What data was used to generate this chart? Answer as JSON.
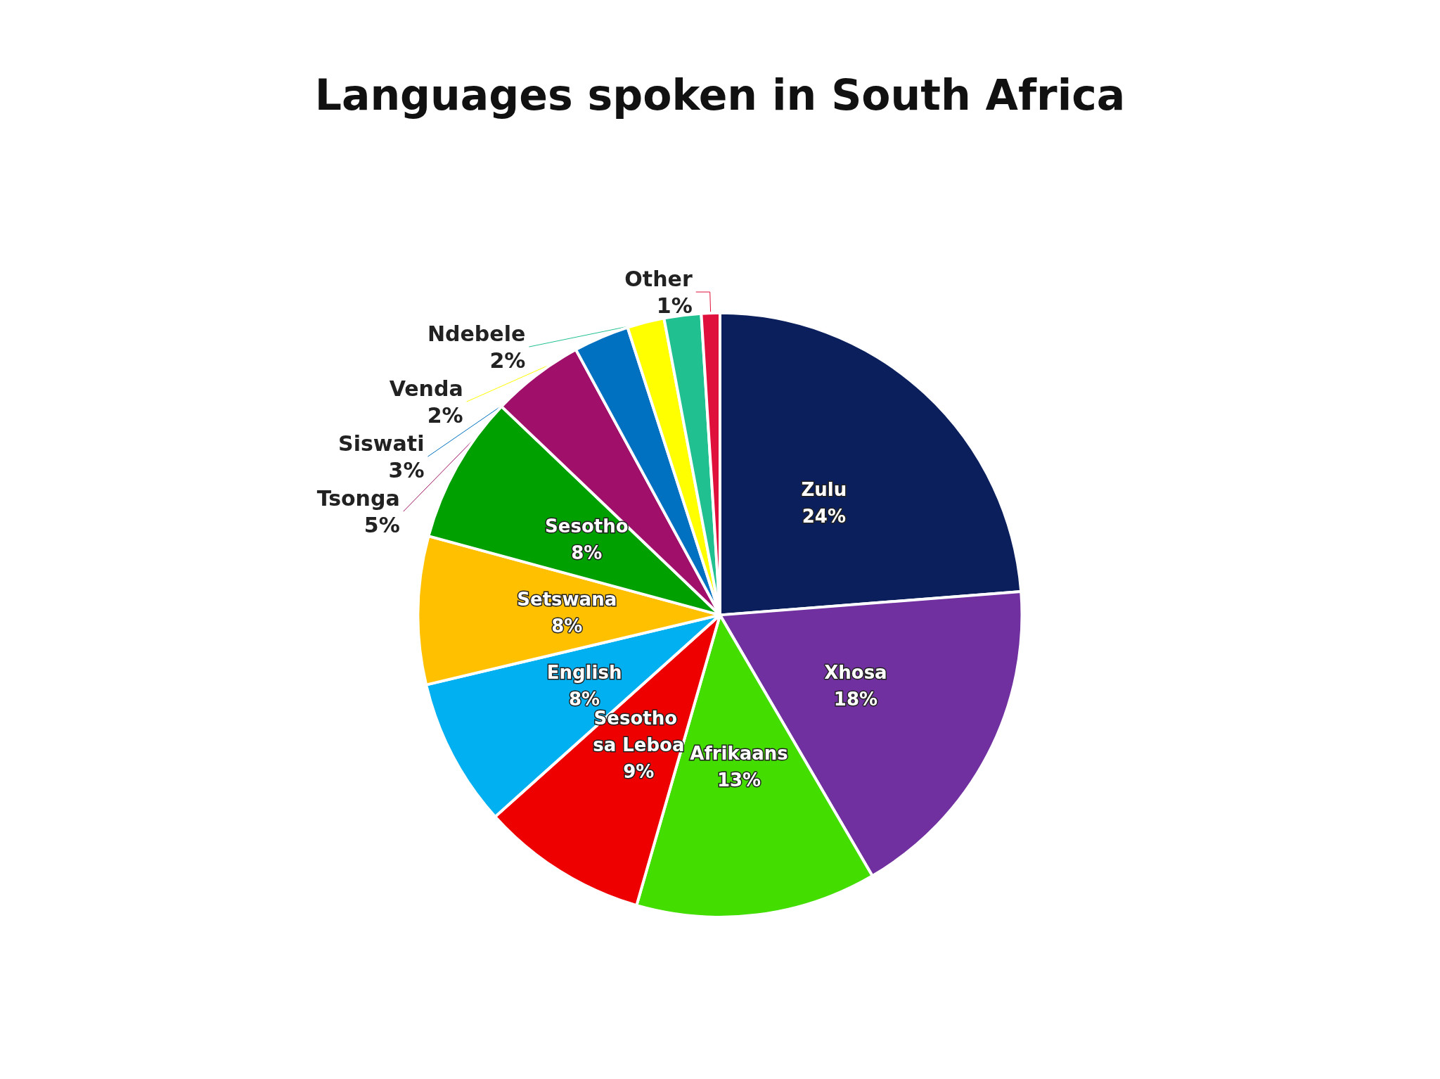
{
  "chart_data": {
    "type": "pie",
    "title": "Languages spoken in South Africa",
    "categories": [
      "Zulu",
      "Xhosa",
      "Afrikaans",
      "Sesotho sa Leboa",
      "English",
      "Setswana",
      "Sesotho",
      "Tsonga",
      "Siswati",
      "Venda",
      "Ndebele",
      "Other"
    ],
    "values": [
      24,
      18,
      13,
      9,
      8,
      8,
      8,
      5,
      3,
      2,
      2,
      1
    ],
    "value_labels": [
      "24%",
      "18%",
      "13%",
      "9%",
      "8%",
      "8%",
      "8%",
      "5%",
      "3%",
      "2%",
      "2%",
      "1%"
    ],
    "colors": [
      "#0b1f5c",
      "#7030a0",
      "#44dd00",
      "#ee0000",
      "#00b0f0",
      "#ffc000",
      "#00a000",
      "#a0106a",
      "#0070c0",
      "#ffff00",
      "#20c090",
      "#e0103c"
    ],
    "legend": false
  }
}
